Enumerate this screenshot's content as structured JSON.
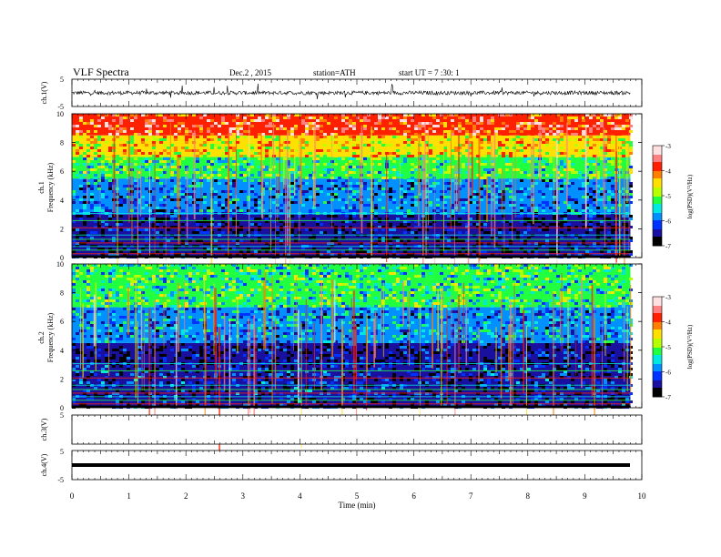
{
  "header": {
    "title": "VLF  Spectra",
    "date": "Dec.2  , 2015",
    "station": "station=ATH",
    "start": "start  UT  =   7  :30: 1"
  },
  "chart_data": [
    {
      "type": "line",
      "name": "ch1-waveform",
      "ylabel": "ch.1(V)",
      "ylim": [
        -5,
        5
      ],
      "yticks": [
        "5",
        "-5"
      ],
      "xlim": [
        0,
        10
      ],
      "signal": "noisy waveform, baseline ~0 V, amplitude mostly within ±1 V with spikes toward ±3 V"
    },
    {
      "type": "heatmap",
      "name": "ch1-spectrogram",
      "ylabel": "ch.1\nFrequency (kHz)",
      "ylim": [
        0,
        10
      ],
      "yticks": [
        "0",
        "2",
        "4",
        "6",
        "8",
        "10"
      ],
      "xlim": [
        0,
        9.8
      ],
      "bands": [
        {
          "from_khz": 0,
          "to_khz": 3,
          "level": -6.6
        },
        {
          "from_khz": 3,
          "to_khz": 5.5,
          "level": -6.0
        },
        {
          "from_khz": 5.5,
          "to_khz": 7,
          "level": -5.3
        },
        {
          "from_khz": 7,
          "to_khz": 8.5,
          "level": -4.5
        },
        {
          "from_khz": 8.5,
          "to_khz": 10,
          "level": -3.8
        }
      ],
      "colorbar": {
        "label": "log(PSD)(V²/Hz)",
        "ticks": [
          "-3",
          "-4",
          "-5",
          "-6",
          "-7"
        ],
        "range": [
          -7,
          -3
        ]
      }
    },
    {
      "type": "heatmap",
      "name": "ch2-spectrogram",
      "ylabel": "ch.2\nFrequency (kHz)",
      "ylim": [
        0,
        10
      ],
      "yticks": [
        "0",
        "2",
        "4",
        "6",
        "8",
        "10"
      ],
      "xlim": [
        0,
        9.8
      ],
      "bands": [
        {
          "from_khz": 0,
          "to_khz": 3,
          "level": -6.4
        },
        {
          "from_khz": 3,
          "to_khz": 4.5,
          "level": -6.6
        },
        {
          "from_khz": 4.5,
          "to_khz": 7,
          "level": -5.9
        },
        {
          "from_khz": 7,
          "to_khz": 10,
          "level": -5.3
        }
      ],
      "colorbar": {
        "label": "log(PSD)(V²/Hz)",
        "ticks": [
          "-3",
          "-4",
          "-5",
          "-6",
          "-7"
        ],
        "range": [
          -7,
          -3
        ]
      }
    },
    {
      "type": "line",
      "name": "ch3-waveform",
      "ylabel": "ch.3(V)",
      "ylim": [
        -5,
        5
      ],
      "yticks": [
        "5"
      ],
      "xlim": [
        0,
        10
      ],
      "signal": "no data"
    },
    {
      "type": "line",
      "name": "ch4-waveform",
      "ylabel": "ch.4(V)",
      "ylim": [
        -5,
        5
      ],
      "yticks": [
        "5",
        "-5"
      ],
      "xlim": [
        0,
        10
      ],
      "signal": "thick flat trace near 0 V"
    }
  ],
  "x_axis": {
    "label": "Time  (min)",
    "ticks": [
      "0",
      "1",
      "2",
      "3",
      "4",
      "5",
      "6",
      "7",
      "8",
      "9",
      "10"
    ],
    "range": [
      0,
      10
    ]
  },
  "colormap": [
    "#000000",
    "#1a10a0",
    "#0032ff",
    "#0090ff",
    "#00e8e0",
    "#20ff40",
    "#b8ff00",
    "#ffe000",
    "#ff8000",
    "#ff2000",
    "#ff8080",
    "#ffe0e0"
  ]
}
